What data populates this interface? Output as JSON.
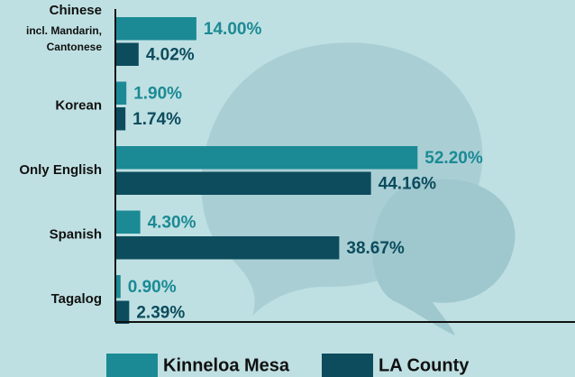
{
  "chart_data": {
    "type": "hbar",
    "categories": [
      [
        "Chinese",
        "incl. Mandarin,",
        "Cantonese"
      ],
      "Korean",
      "Only English",
      "Spanish",
      "Tagalog"
    ],
    "series": [
      {
        "name": "Kinneloa Mesa",
        "color": "#1b8a95",
        "values": [
          14.0,
          1.9,
          52.2,
          4.3,
          0.9
        ],
        "value_labels": [
          "14.00%",
          "1.90%",
          "52.20%",
          "4.30%",
          "0.90%"
        ]
      },
      {
        "name": "LA County",
        "color": "#0c4c5d",
        "values": [
          4.02,
          1.74,
          44.16,
          38.67,
          2.39
        ],
        "value_labels": [
          "4.02%",
          "1.74%",
          "44.16%",
          "38.67%",
          "2.39%"
        ]
      }
    ],
    "xlim": [
      0,
      79.4
    ]
  }
}
